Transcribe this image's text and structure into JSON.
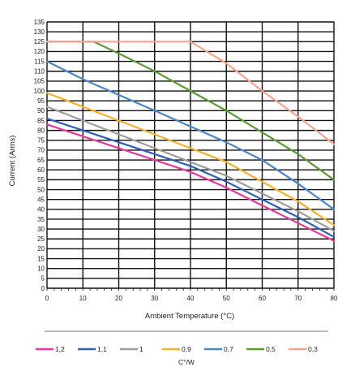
{
  "chart_data": {
    "type": "line",
    "xlabel": "Ambient Temperature (°C)",
    "ylabel": "Current (Arms)",
    "xlim": [
      0,
      80
    ],
    "ylim": [
      0,
      135
    ],
    "x_ticks": [
      0,
      10,
      20,
      30,
      40,
      50,
      60,
      70,
      80
    ],
    "y_ticks": [
      0,
      5,
      10,
      15,
      20,
      25,
      30,
      35,
      40,
      45,
      50,
      55,
      60,
      65,
      70,
      75,
      80,
      85,
      90,
      95,
      100,
      105,
      110,
      115,
      120,
      125,
      130,
      135
    ],
    "grid": true,
    "legend_position": "bottom",
    "legend_title": "C°/W",
    "series": [
      {
        "name": "1,2",
        "color": "#e8399a",
        "points": [
          [
            0,
            83
          ],
          [
            10,
            77
          ],
          [
            20,
            71
          ],
          [
            30,
            65
          ],
          [
            40,
            59
          ],
          [
            50,
            51
          ],
          [
            60,
            42
          ],
          [
            70,
            33
          ],
          [
            80,
            24
          ]
        ]
      },
      {
        "name": "1,1",
        "color": "#2f5fb3",
        "points": [
          [
            0,
            86
          ],
          [
            10,
            80
          ],
          [
            20,
            74
          ],
          [
            30,
            68
          ],
          [
            40,
            62
          ],
          [
            50,
            54
          ],
          [
            60,
            45
          ],
          [
            70,
            36
          ],
          [
            80,
            26
          ]
        ]
      },
      {
        "name": "1",
        "color": "#9e9e9e",
        "points": [
          [
            0,
            92
          ],
          [
            10,
            85
          ],
          [
            20,
            78
          ],
          [
            30,
            71
          ],
          [
            40,
            64
          ],
          [
            50,
            57
          ],
          [
            60,
            48
          ],
          [
            70,
            39
          ],
          [
            80,
            29
          ]
        ]
      },
      {
        "name": "0,9",
        "color": "#f2b12e",
        "points": [
          [
            0,
            99
          ],
          [
            10,
            92
          ],
          [
            20,
            85
          ],
          [
            30,
            78
          ],
          [
            40,
            71
          ],
          [
            50,
            64
          ],
          [
            60,
            54
          ],
          [
            70,
            44
          ],
          [
            80,
            32
          ]
        ]
      },
      {
        "name": "0,7",
        "color": "#4a86c8",
        "points": [
          [
            0,
            115
          ],
          [
            10,
            106
          ],
          [
            20,
            98
          ],
          [
            30,
            90
          ],
          [
            40,
            82
          ],
          [
            50,
            74
          ],
          [
            60,
            65
          ],
          [
            70,
            53
          ],
          [
            80,
            40
          ]
        ]
      },
      {
        "name": "0,5",
        "color": "#5b9a35",
        "points": [
          [
            0,
            125
          ],
          [
            13,
            125
          ],
          [
            20,
            119
          ],
          [
            30,
            110
          ],
          [
            40,
            100
          ],
          [
            50,
            90
          ],
          [
            60,
            79
          ],
          [
            70,
            68
          ],
          [
            80,
            55
          ]
        ]
      },
      {
        "name": "0,3",
        "color": "#f2a48c",
        "points": [
          [
            0,
            125
          ],
          [
            40,
            125
          ],
          [
            50,
            114
          ],
          [
            60,
            100
          ],
          [
            70,
            87
          ],
          [
            80,
            73
          ]
        ]
      }
    ]
  }
}
